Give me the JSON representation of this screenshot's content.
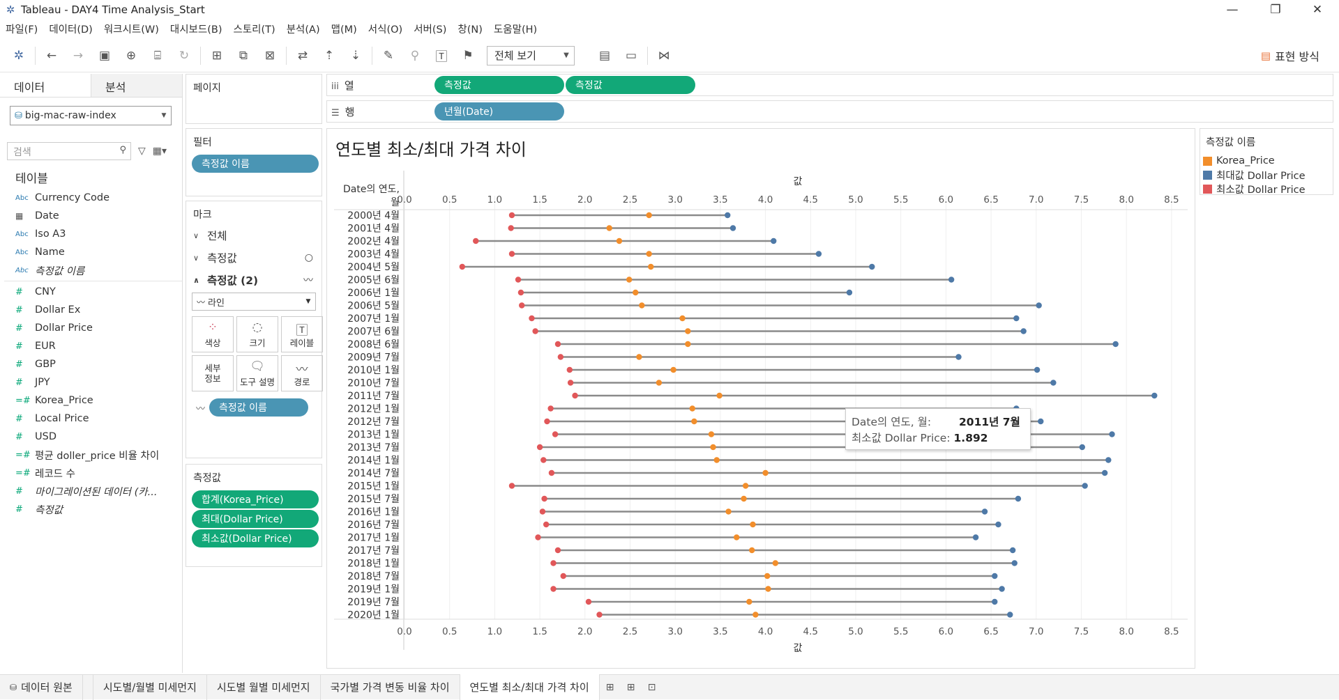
{
  "window": {
    "title": "Tableau - DAY4 Time Analysis_Start"
  },
  "menu": [
    "파일(F)",
    "데이터(D)",
    "워크시트(W)",
    "대시보드(B)",
    "스토리(T)",
    "분석(A)",
    "맵(M)",
    "서식(O)",
    "서버(S)",
    "창(N)",
    "도움말(H)"
  ],
  "toolbar": {
    "fit": "전체 보기",
    "show_me": "표현 방식"
  },
  "data_pane": {
    "tab_data": "데이터",
    "tab_analysis": "분석",
    "datasource": "big-mac-raw-index",
    "search_placeholder": "검색",
    "tables_header": "테이블",
    "dimensions": [
      {
        "type": "Abc",
        "name": "Currency Code",
        "italic": false
      },
      {
        "type": "date",
        "name": "Date",
        "italic": false
      },
      {
        "type": "Abc",
        "name": "Iso A3",
        "italic": false
      },
      {
        "type": "Abc",
        "name": "Name",
        "italic": false
      },
      {
        "type": "Abc",
        "name": "측정값 이름",
        "italic": true
      }
    ],
    "measures": [
      {
        "type": "#",
        "name": "CNY",
        "italic": false
      },
      {
        "type": "#",
        "name": "Dollar Ex",
        "italic": false
      },
      {
        "type": "#",
        "name": "Dollar Price",
        "italic": false
      },
      {
        "type": "#",
        "name": "EUR",
        "italic": false
      },
      {
        "type": "#",
        "name": "GBP",
        "italic": false
      },
      {
        "type": "#",
        "name": "JPY",
        "italic": false
      },
      {
        "type": "=#",
        "name": "Korea_Price",
        "italic": false
      },
      {
        "type": "#",
        "name": "Local Price",
        "italic": false
      },
      {
        "type": "#",
        "name": "USD",
        "italic": false
      },
      {
        "type": "=#",
        "name": "평균 doller_price 비율 차이",
        "italic": false
      },
      {
        "type": "=#",
        "name": "레코드 수",
        "italic": false
      },
      {
        "type": "#",
        "name": "마이그레이션된 데이터 (카...",
        "italic": true
      },
      {
        "type": "#",
        "name": "측정값",
        "italic": true
      }
    ]
  },
  "shelves": {
    "pages": "페이지",
    "filters": "필터",
    "filter_pill": "측정값 이름",
    "marks": "마크",
    "marks_all": "전체",
    "marks_measure": "측정값",
    "marks_measure2": "측정값 (2)",
    "mark_type": "라인",
    "mark_buttons": [
      "색상",
      "크기",
      "레이블",
      "세부\n정보",
      "도구 설명",
      "경로"
    ],
    "marks_pill": "측정값 이름",
    "measure_values_header": "측정값",
    "measure_values": [
      "합계(Korea_Price)",
      "최대(Dollar Price)",
      "최소값(Dollar Price)"
    ],
    "columns_label": "열",
    "columns_pills": [
      "측정값",
      "측정값"
    ],
    "rows_label": "행",
    "rows_pill": "년월(Date)"
  },
  "chart_data": {
    "type": "dot-range",
    "title": "연도별 최소/최대 가격 차이",
    "ylabel": "Date의 연도, 월",
    "xlabel": "값",
    "xlim": [
      0,
      8.6
    ],
    "xticks": [
      0.0,
      0.5,
      1.0,
      1.5,
      2.0,
      2.5,
      3.0,
      3.5,
      4.0,
      4.5,
      5.0,
      5.5,
      6.0,
      6.5,
      7.0,
      7.5,
      8.0,
      8.5
    ],
    "xtick_labels": [
      "0.0",
      "0.5",
      "1.0",
      "1.5",
      "2.0",
      "2.5",
      "3.0",
      "3.5",
      "4.0",
      "4.5",
      "5.0",
      "5.5",
      "6.0",
      "6.5",
      "7.0",
      "7.5",
      "8.0",
      "8.5"
    ],
    "categories": [
      "2000년 4월",
      "2001년 4월",
      "2002년 4월",
      "2003년 4월",
      "2004년 5월",
      "2005년 6월",
      "2006년 1월",
      "2006년 5월",
      "2007년 1월",
      "2007년 6월",
      "2008년 6월",
      "2009년 7월",
      "2010년 1월",
      "2010년 7월",
      "2011년 7월",
      "2012년 1월",
      "2012년 7월",
      "2013년 1월",
      "2013년 7월",
      "2014년 1월",
      "2014년 7월",
      "2015년 1월",
      "2015년 7월",
      "2016년 1월",
      "2016년 7월",
      "2017년 1월",
      "2017년 7월",
      "2018년 1월",
      "2018년 7월",
      "2019년 1월",
      "2019년 7월",
      "2020년 1월"
    ],
    "series": [
      {
        "name": "Korea_Price",
        "color": "#f28e2b",
        "values": [
          2.71,
          2.27,
          2.38,
          2.71,
          2.73,
          2.49,
          2.56,
          2.63,
          3.08,
          3.14,
          3.14,
          2.6,
          2.98,
          2.82,
          3.49,
          3.19,
          3.21,
          3.4,
          3.42,
          3.46,
          4.0,
          3.78,
          3.76,
          3.59,
          3.86,
          3.68,
          3.85,
          4.11,
          4.02,
          4.03,
          3.82,
          3.89
        ]
      },
      {
        "name": "최대값 Dollar Price",
        "color": "#4e79a7",
        "values": [
          3.58,
          3.64,
          4.09,
          4.59,
          5.18,
          6.06,
          4.93,
          7.03,
          6.78,
          6.86,
          7.88,
          6.14,
          7.01,
          7.19,
          8.31,
          6.78,
          7.05,
          7.84,
          7.51,
          7.8,
          7.76,
          7.54,
          6.8,
          6.43,
          6.58,
          6.33,
          6.74,
          6.76,
          6.54,
          6.62,
          6.54,
          6.71
        ]
      },
      {
        "name": "최소값 Dollar Price",
        "color": "#e15759",
        "values": [
          1.19,
          1.18,
          0.79,
          1.19,
          0.64,
          1.26,
          1.29,
          1.3,
          1.41,
          1.45,
          1.7,
          1.73,
          1.83,
          1.84,
          1.89,
          1.62,
          1.58,
          1.67,
          1.5,
          1.54,
          1.63,
          1.19,
          1.55,
          1.53,
          1.57,
          1.48,
          1.7,
          1.65,
          1.76,
          1.65,
          2.04,
          2.16
        ]
      }
    ],
    "legend_title": "측정값 이름",
    "legend": [
      "Korea_Price",
      "최대값 Dollar Price",
      "최소값 Dollar Price"
    ]
  },
  "tooltip": {
    "l1": "Date의 연도, 월:",
    "v1": "2011년 7월",
    "l2": "최소값 Dollar Price:",
    "v2": "1.892"
  },
  "sheet_tabs": [
    "데이터 원본",
    "시도별/월별 미세먼지",
    "시도별 월별 미세먼지",
    "국가별 가격 변동 비율 차이",
    "연도별 최소/최대 가격 차이"
  ]
}
